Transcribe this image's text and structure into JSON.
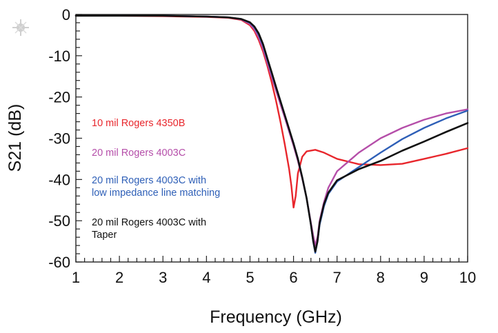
{
  "chart_data": {
    "type": "line",
    "title": "",
    "xlabel": "Frequency (GHz)",
    "ylabel": "S21 (dB)",
    "xlim": [
      1,
      10
    ],
    "ylim": [
      -60,
      0
    ],
    "x_ticks": [
      1,
      2,
      3,
      4,
      5,
      6,
      7,
      8,
      9,
      10
    ],
    "y_ticks": [
      0,
      -10,
      -20,
      -30,
      -40,
      -50,
      -60
    ],
    "x_tick_labels": [
      "1",
      "2",
      "3",
      "4",
      "5",
      "6",
      "7",
      "8",
      "9",
      "10"
    ],
    "y_tick_labels": [
      "0",
      "-10",
      "-20",
      "-30",
      "-40",
      "-50",
      "-60"
    ],
    "grid": false,
    "series": [
      {
        "name": "10 mil Rogers 4350B",
        "legend_lines": [
          "10 mil Rogers 4350B"
        ],
        "color": "#e8262c",
        "x": [
          1,
          2,
          3,
          4,
          4.5,
          4.8,
          5.0,
          5.1,
          5.2,
          5.3,
          5.4,
          5.5,
          5.6,
          5.7,
          5.8,
          5.9,
          5.95,
          6.0,
          6.05,
          6.1,
          6.2,
          6.3,
          6.5,
          6.7,
          7.0,
          7.5,
          8.0,
          8.5,
          9.0,
          9.5,
          10
        ],
        "y": [
          -0.3,
          -0.3,
          -0.4,
          -0.6,
          -0.8,
          -1.3,
          -2.6,
          -4.0,
          -6.2,
          -9.0,
          -12.5,
          -16.5,
          -21.0,
          -26.0,
          -31.5,
          -37.5,
          -41.5,
          -46.8,
          -44.0,
          -38.5,
          -34.5,
          -33.2,
          -32.8,
          -33.5,
          -35.0,
          -36.3,
          -36.5,
          -36.2,
          -35.0,
          -33.8,
          -32.4
        ]
      },
      {
        "name": "20 mil Rogers 4003C",
        "legend_lines": [
          "20 mil Rogers 4003C"
        ],
        "color": "#b54ea9",
        "x": [
          1,
          2,
          3,
          4,
          4.5,
          4.8,
          5.0,
          5.1,
          5.2,
          5.3,
          5.4,
          5.5,
          5.6,
          5.7,
          5.8,
          5.9,
          6.0,
          6.1,
          6.2,
          6.3,
          6.4,
          6.45,
          6.5,
          6.55,
          6.6,
          6.7,
          6.8,
          7.0,
          7.5,
          8.0,
          8.5,
          9.0,
          9.5,
          10
        ],
        "y": [
          -0.3,
          -0.3,
          -0.3,
          -0.5,
          -0.7,
          -1.2,
          -2.3,
          -3.6,
          -5.6,
          -8.3,
          -11.8,
          -15.2,
          -18.5,
          -21.8,
          -25.0,
          -28.4,
          -31.8,
          -35.5,
          -39.8,
          -44.5,
          -50.5,
          -53.5,
          -56.0,
          -54.0,
          -50.0,
          -45.5,
          -42.0,
          -38.0,
          -33.5,
          -30.0,
          -27.5,
          -25.5,
          -24.0,
          -23.0
        ]
      },
      {
        "name": "20 mil Rogers 4003C with low impedance line matching",
        "legend_lines": [
          "20 mil Rogers 4003C with",
          "low impedance line matching"
        ],
        "color": "#2e5fb7",
        "x": [
          1,
          2,
          3,
          4,
          4.5,
          4.8,
          5.0,
          5.1,
          5.2,
          5.3,
          5.4,
          5.5,
          5.6,
          5.7,
          5.8,
          5.9,
          6.0,
          6.1,
          6.2,
          6.3,
          6.4,
          6.45,
          6.5,
          6.55,
          6.6,
          6.7,
          6.8,
          7.0,
          7.5,
          8.0,
          8.5,
          9.0,
          9.5,
          10
        ],
        "y": [
          -0.3,
          -0.3,
          -0.3,
          -0.5,
          -0.7,
          -1.1,
          -2.0,
          -3.1,
          -4.9,
          -7.5,
          -11.0,
          -14.3,
          -17.8,
          -21.0,
          -24.4,
          -27.9,
          -31.2,
          -35.0,
          -39.5,
          -44.5,
          -51.0,
          -55.0,
          -57.8,
          -55.0,
          -51.0,
          -46.5,
          -43.5,
          -40.5,
          -37.0,
          -33.5,
          -30.2,
          -27.5,
          -25.2,
          -23.3
        ]
      },
      {
        "name": "20 mil Rogers 4003C with Taper",
        "legend_lines": [
          "20 mil Rogers 4003C with",
          "Taper"
        ],
        "color": "#111111",
        "x": [
          1,
          2,
          3,
          4,
          4.5,
          4.8,
          5.0,
          5.1,
          5.2,
          5.3,
          5.4,
          5.5,
          5.6,
          5.7,
          5.8,
          5.9,
          6.0,
          6.1,
          6.2,
          6.3,
          6.4,
          6.45,
          6.5,
          6.55,
          6.6,
          6.7,
          6.8,
          7.0,
          7.5,
          8.0,
          8.5,
          9.0,
          9.5,
          10
        ],
        "y": [
          -0.3,
          -0.3,
          -0.3,
          -0.5,
          -0.7,
          -1.1,
          -1.9,
          -2.9,
          -4.6,
          -7.2,
          -10.7,
          -14.1,
          -17.6,
          -21.0,
          -24.4,
          -27.8,
          -31.3,
          -35.0,
          -39.5,
          -44.5,
          -51.0,
          -54.8,
          -57.5,
          -55.0,
          -50.5,
          -46.0,
          -43.2,
          -40.2,
          -37.5,
          -35.5,
          -33.0,
          -30.8,
          -28.5,
          -26.3
        ]
      }
    ],
    "legend_placement": "left-middle inside plot"
  }
}
